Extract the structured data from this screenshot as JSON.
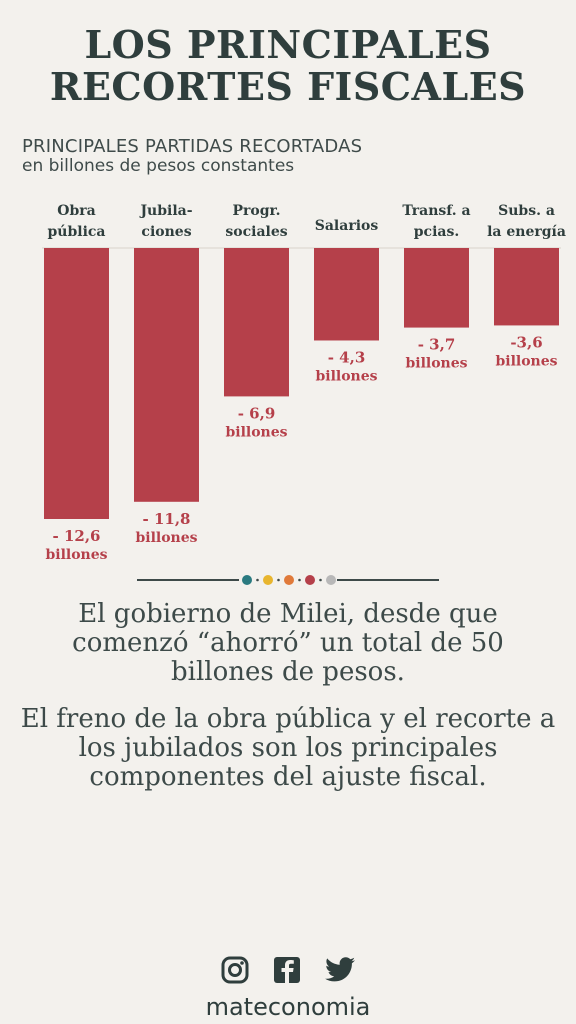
{
  "title": {
    "line1": "LOS PRINCIPALES",
    "line2": "RECORTES FISCALES"
  },
  "subtitle": {
    "line1": "PRINCIPALES PARTIDAS RECORTADAS",
    "line2": "en billones de pesos constantes"
  },
  "chart_data": {
    "type": "bar",
    "categories": [
      [
        "Obra",
        "pública"
      ],
      [
        "Jubila-",
        "ciones"
      ],
      [
        "Progr.",
        "sociales"
      ],
      [
        "Salarios"
      ],
      [
        "Transf. a",
        "pcias."
      ],
      [
        "Subs. a",
        "la energía"
      ]
    ],
    "values": [
      -12.6,
      -11.8,
      -6.9,
      -4.3,
      -3.7,
      -3.6
    ],
    "value_labels": [
      "- 12,6",
      "- 11,8",
      "- 6,9",
      "- 4,3",
      "- 3,7",
      "-3,6"
    ],
    "unit_label": "billones",
    "bar_color": "#b5404a",
    "ylim": [
      -12.6,
      0
    ],
    "orientation": "downward"
  },
  "divider_dots": [
    "#2a7a80",
    "#e8b52e",
    "#e07a3a",
    "#b5404a",
    "#b8b8b8"
  ],
  "body": {
    "paragraph1": "El gobierno de Milei, desde que comenzó “ahorró” un total de 50 billones de pesos.",
    "paragraph2": "El freno de la obra pública y el recorte a los jubilados son los principales componentes del ajuste fiscal."
  },
  "footer": {
    "icons": [
      "instagram-icon",
      "facebook-icon",
      "twitter-icon"
    ],
    "brand": "mateconomia"
  }
}
